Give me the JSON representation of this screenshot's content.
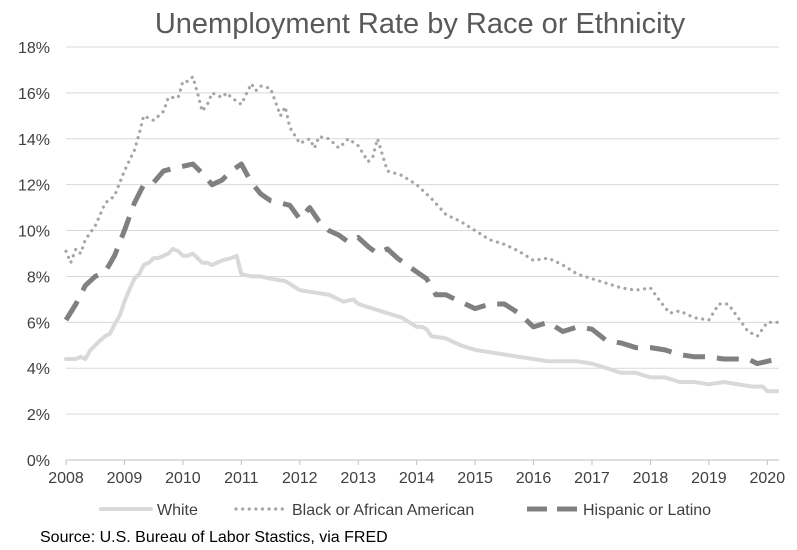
{
  "chart_data": {
    "type": "line",
    "title": "Unemployment Rate by Race or Ethnicity",
    "xlabel": "",
    "ylabel": "",
    "xlim": [
      2008,
      2020.2
    ],
    "ylim": [
      0,
      18
    ],
    "x_ticks": [
      {
        "value": 2008,
        "label": "2008"
      },
      {
        "value": 2009,
        "label": "2009"
      },
      {
        "value": 2010,
        "label": "2010"
      },
      {
        "value": 2011,
        "label": "2011"
      },
      {
        "value": 2012,
        "label": "2012"
      },
      {
        "value": 2013,
        "label": "2013"
      },
      {
        "value": 2014,
        "label": "2014"
      },
      {
        "value": 2015,
        "label": "2015"
      },
      {
        "value": 2016,
        "label": "2016"
      },
      {
        "value": 2017,
        "label": "2017"
      },
      {
        "value": 2018,
        "label": "2018"
      },
      {
        "value": 2019,
        "label": "2019"
      },
      {
        "value": 2020,
        "label": "2020"
      }
    ],
    "y_ticks": [
      {
        "value": 0,
        "label": "0%"
      },
      {
        "value": 2,
        "label": "2%"
      },
      {
        "value": 4,
        "label": "4%"
      },
      {
        "value": 6,
        "label": "6%"
      },
      {
        "value": 8,
        "label": "8%"
      },
      {
        "value": 10,
        "label": "10%"
      },
      {
        "value": 12,
        "label": "12%"
      },
      {
        "value": 14,
        "label": "14%"
      },
      {
        "value": 16,
        "label": "16%"
      },
      {
        "value": 18,
        "label": "18%"
      }
    ],
    "grid": true,
    "legend_position": "bottom",
    "series": [
      {
        "name": "White",
        "color": "#d9d9d9",
        "style": "solid",
        "x": [
          2008.0,
          2008.17,
          2008.25,
          2008.33,
          2008.42,
          2008.5,
          2008.58,
          2008.67,
          2008.75,
          2008.83,
          2008.92,
          2009.0,
          2009.08,
          2009.17,
          2009.25,
          2009.33,
          2009.42,
          2009.5,
          2009.58,
          2009.67,
          2009.75,
          2009.83,
          2009.92,
          2010.0,
          2010.08,
          2010.17,
          2010.25,
          2010.33,
          2010.42,
          2010.5,
          2010.67,
          2010.83,
          2010.92,
          2011.0,
          2011.17,
          2011.33,
          2011.5,
          2011.75,
          2012.0,
          2012.25,
          2012.5,
          2012.75,
          2012.92,
          2013.0,
          2013.25,
          2013.5,
          2013.75,
          2014.0,
          2014.1,
          2014.17,
          2014.25,
          2014.5,
          2014.75,
          2015.0,
          2015.25,
          2015.5,
          2015.75,
          2016.0,
          2016.25,
          2016.5,
          2016.75,
          2017.0,
          2017.25,
          2017.5,
          2017.75,
          2018.0,
          2018.25,
          2018.5,
          2018.75,
          2019.0,
          2019.25,
          2019.5,
          2019.75,
          2019.92,
          2020.0,
          2020.17
        ],
        "y": [
          4.4,
          4.4,
          4.5,
          4.4,
          4.8,
          5.0,
          5.2,
          5.4,
          5.5,
          5.9,
          6.3,
          6.9,
          7.4,
          7.9,
          8.1,
          8.5,
          8.6,
          8.8,
          8.8,
          8.9,
          9.0,
          9.2,
          9.1,
          8.9,
          8.9,
          9.0,
          8.8,
          8.6,
          8.6,
          8.5,
          8.7,
          8.8,
          8.9,
          8.1,
          8.0,
          8.0,
          7.9,
          7.8,
          7.4,
          7.3,
          7.2,
          6.9,
          7.0,
          6.8,
          6.6,
          6.4,
          6.2,
          5.8,
          5.8,
          5.7,
          5.4,
          5.3,
          5.0,
          4.8,
          4.7,
          4.6,
          4.5,
          4.4,
          4.3,
          4.3,
          4.3,
          4.2,
          4.0,
          3.8,
          3.8,
          3.6,
          3.6,
          3.4,
          3.4,
          3.3,
          3.4,
          3.3,
          3.2,
          3.2,
          3.0,
          3.0
        ]
      },
      {
        "name": "Black or African American",
        "color": "#a6a6a6",
        "style": "dotted",
        "x": [
          2008.0,
          2008.08,
          2008.17,
          2008.25,
          2008.33,
          2008.5,
          2008.67,
          2008.83,
          2009.0,
          2009.17,
          2009.25,
          2009.33,
          2009.5,
          2009.67,
          2009.75,
          2009.92,
          2010.0,
          2010.08,
          2010.17,
          2010.25,
          2010.33,
          2010.42,
          2010.5,
          2010.67,
          2010.75,
          2010.83,
          2011.0,
          2011.17,
          2011.25,
          2011.33,
          2011.5,
          2011.67,
          2011.75,
          2011.83,
          2012.0,
          2012.17,
          2012.25,
          2012.33,
          2012.5,
          2012.67,
          2012.83,
          2013.0,
          2013.17,
          2013.25,
          2013.33,
          2013.5,
          2013.75,
          2014.0,
          2014.25,
          2014.5,
          2014.75,
          2015.0,
          2015.25,
          2015.5,
          2015.75,
          2016.0,
          2016.25,
          2016.5,
          2016.75,
          2017.0,
          2017.25,
          2017.5,
          2017.75,
          2018.0,
          2018.17,
          2018.33,
          2018.5,
          2018.75,
          2019.0,
          2019.17,
          2019.33,
          2019.5,
          2019.67,
          2019.83,
          2020.0,
          2020.17
        ],
        "y": [
          9.1,
          8.6,
          9.2,
          9.0,
          9.6,
          10.2,
          11.2,
          11.5,
          12.6,
          13.5,
          14.2,
          15.0,
          14.8,
          15.2,
          15.8,
          15.8,
          16.5,
          16.5,
          16.7,
          16.0,
          15.2,
          15.5,
          16.0,
          15.8,
          16.0,
          15.8,
          15.5,
          16.4,
          16.1,
          16.3,
          16.2,
          15.0,
          15.4,
          14.5,
          13.8,
          14.0,
          13.6,
          14.1,
          14.0,
          13.6,
          14.0,
          13.7,
          13.0,
          13.2,
          14.0,
          12.6,
          12.4,
          12.0,
          11.4,
          10.7,
          10.4,
          10.0,
          9.6,
          9.4,
          9.1,
          8.7,
          8.8,
          8.5,
          8.1,
          7.9,
          7.7,
          7.5,
          7.4,
          7.5,
          6.9,
          6.4,
          6.5,
          6.2,
          6.1,
          6.8,
          6.8,
          6.2,
          5.6,
          5.4,
          6.0,
          6.0
        ]
      },
      {
        "name": "Hispanic or Latino",
        "color": "#808080",
        "style": "dashed",
        "x": [
          2008.0,
          2008.17,
          2008.33,
          2008.5,
          2008.67,
          2008.83,
          2009.0,
          2009.17,
          2009.33,
          2009.5,
          2009.67,
          2009.83,
          2010.0,
          2010.17,
          2010.33,
          2010.5,
          2010.67,
          2010.83,
          2011.0,
          2011.17,
          2011.33,
          2011.5,
          2011.67,
          2011.83,
          2012.0,
          2012.17,
          2012.33,
          2012.5,
          2012.67,
          2012.83,
          2013.0,
          2013.17,
          2013.33,
          2013.5,
          2013.67,
          2013.83,
          2014.0,
          2014.17,
          2014.33,
          2014.5,
          2014.75,
          2015.0,
          2015.25,
          2015.5,
          2015.75,
          2016.0,
          2016.25,
          2016.5,
          2016.75,
          2017.0,
          2017.25,
          2017.5,
          2017.75,
          2018.0,
          2018.25,
          2018.5,
          2018.75,
          2019.0,
          2019.25,
          2019.5,
          2019.67,
          2019.83,
          2020.0,
          2020.17
        ],
        "y": [
          6.1,
          6.8,
          7.6,
          8.0,
          8.2,
          8.9,
          10.0,
          11.2,
          12.0,
          12.1,
          12.6,
          12.7,
          12.8,
          12.9,
          12.5,
          12.0,
          12.2,
          12.6,
          12.9,
          12.1,
          11.6,
          11.3,
          11.2,
          11.1,
          10.5,
          11.0,
          10.4,
          10.0,
          9.8,
          9.5,
          9.7,
          9.3,
          9.0,
          9.2,
          8.8,
          8.5,
          8.2,
          7.9,
          7.2,
          7.2,
          6.9,
          6.6,
          6.8,
          6.8,
          6.4,
          5.8,
          6.0,
          5.6,
          5.8,
          5.7,
          5.2,
          5.1,
          4.9,
          4.9,
          4.8,
          4.6,
          4.5,
          4.5,
          4.4,
          4.4,
          4.4,
          4.2,
          4.3,
          4.4
        ]
      }
    ],
    "source": "Source: U.S. Bureau of Labor Stastics, via FRED"
  }
}
